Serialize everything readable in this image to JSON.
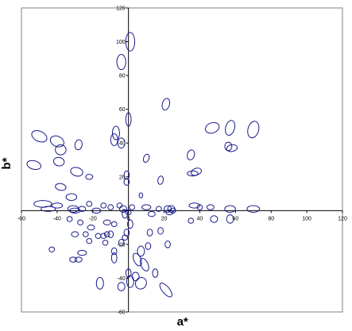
{
  "chart_data": {
    "type": "scatter",
    "title": "",
    "xlabel": "a*",
    "ylabel": "b*",
    "xlim": [
      -60,
      120
    ],
    "ylim": [
      -60,
      120
    ],
    "x_ticks": [
      -60,
      -40,
      -20,
      0,
      20,
      40,
      60,
      80,
      100,
      120
    ],
    "y_ticks": [
      -60,
      -40,
      -20,
      0,
      20,
      40,
      60,
      80,
      100,
      120
    ],
    "x_tick_labels": [
      "-60",
      "-40",
      "-20",
      "0",
      "20",
      "40",
      "60",
      "80",
      "100",
      "120"
    ],
    "y_tick_labels": [
      "-60",
      "-40",
      "-20",
      "0",
      "20",
      "40",
      "60",
      "80",
      "100",
      "120"
    ],
    "grid": false,
    "legend": "none",
    "marker": "ellipse",
    "colors": {
      "marker": "#1a1a8c",
      "axis": "#000000",
      "frame": "#808080"
    },
    "points": [
      {
        "x": 1,
        "y": 100,
        "ra": 2.5,
        "rb": 5.5,
        "rot": 0
      },
      {
        "x": -4,
        "y": 88,
        "ra": 2.5,
        "rb": 4.5,
        "rot": 0
      },
      {
        "x": 21,
        "y": 63,
        "ra": 2,
        "rb": 3.5,
        "rot": 15
      },
      {
        "x": 0,
        "y": 54,
        "ra": 1.5,
        "rb": 4,
        "rot": 0
      },
      {
        "x": -7,
        "y": 46,
        "ra": 2,
        "rb": 4,
        "rot": 0
      },
      {
        "x": -8,
        "y": 42,
        "ra": 2,
        "rb": 3.5,
        "rot": 0
      },
      {
        "x": -4,
        "y": 40,
        "ra": 2,
        "rb": 3,
        "rot": 0
      },
      {
        "x": 10,
        "y": 31,
        "ra": 1.5,
        "rb": 2.5,
        "rot": 20
      },
      {
        "x": 47,
        "y": 49,
        "ra": 4,
        "rb": 3,
        "rot": -20
      },
      {
        "x": 57,
        "y": 49,
        "ra": 2.5,
        "rb": 4.5,
        "rot": 15
      },
      {
        "x": 70,
        "y": 48,
        "ra": 3,
        "rb": 5,
        "rot": 15
      },
      {
        "x": 56,
        "y": 38,
        "ra": 2,
        "rb": 2.5,
        "rot": 0
      },
      {
        "x": 58,
        "y": 37,
        "ra": 3,
        "rb": 2,
        "rot": -10
      },
      {
        "x": 35,
        "y": 33,
        "ra": 2,
        "rb": 3,
        "rot": 15
      },
      {
        "x": 38,
        "y": 23,
        "ra": 3,
        "rb": 2,
        "rot": -20
      },
      {
        "x": 36,
        "y": 22,
        "ra": 3,
        "rb": 1.5,
        "rot": 0
      },
      {
        "x": 18,
        "y": 18,
        "ra": 1.5,
        "rb": 2.5,
        "rot": 10
      },
      {
        "x": -1,
        "y": 21,
        "ra": 1.5,
        "rb": 2.5,
        "rot": 0
      },
      {
        "x": -1,
        "y": 17,
        "ra": 1.5,
        "rb": 2,
        "rot": 0
      },
      {
        "x": 7,
        "y": 9,
        "ra": 1,
        "rb": 1.5,
        "rot": 0
      },
      {
        "x": -50,
        "y": 44,
        "ra": 4.5,
        "rb": 3,
        "rot": 25
      },
      {
        "x": -40,
        "y": 41,
        "ra": 4,
        "rb": 3,
        "rot": 25
      },
      {
        "x": -38,
        "y": 36,
        "ra": 3,
        "rb": 3,
        "rot": 0
      },
      {
        "x": -28,
        "y": 39,
        "ra": 2,
        "rb": 3,
        "rot": 10
      },
      {
        "x": -53,
        "y": 27,
        "ra": 4,
        "rb": 2.5,
        "rot": 15
      },
      {
        "x": -39,
        "y": 29,
        "ra": 3,
        "rb": 2.5,
        "rot": 10
      },
      {
        "x": -29,
        "y": 23,
        "ra": 3.5,
        "rb": 2.5,
        "rot": 15
      },
      {
        "x": -22,
        "y": 20,
        "ra": 2,
        "rb": 1.5,
        "rot": 0
      },
      {
        "x": -38,
        "y": 14,
        "ra": 3,
        "rb": 2,
        "rot": 10
      },
      {
        "x": -32,
        "y": 8,
        "ra": 3,
        "rb": 2,
        "rot": 0
      },
      {
        "x": -48,
        "y": 4,
        "ra": 5,
        "rb": 2,
        "rot": 0
      },
      {
        "x": -45,
        "y": 1,
        "ra": 4,
        "rb": 1.5,
        "rot": 0
      },
      {
        "x": -40,
        "y": 3,
        "ra": 3,
        "rb": 1.5,
        "rot": 0
      },
      {
        "x": -31,
        "y": 1,
        "ra": 3,
        "rb": 2,
        "rot": 0
      },
      {
        "x": -30,
        "y": 0,
        "ra": 3,
        "rb": 1.5,
        "rot": 0
      },
      {
        "x": -26,
        "y": 1,
        "ra": 2,
        "rb": 1.5,
        "rot": 0
      },
      {
        "x": -22,
        "y": 4,
        "ra": 1.5,
        "rb": 1.5,
        "rot": 0
      },
      {
        "x": -18,
        "y": 0,
        "ra": 2.5,
        "rb": 1.5,
        "rot": 0
      },
      {
        "x": -14,
        "y": 3,
        "ra": 1.5,
        "rb": 1.5,
        "rot": 0
      },
      {
        "x": -10,
        "y": 2,
        "ra": 1.5,
        "rb": 1.5,
        "rot": 0
      },
      {
        "x": -5,
        "y": 3,
        "ra": 1.5,
        "rb": 1.5,
        "rot": 0
      },
      {
        "x": -3,
        "y": 1,
        "ra": 2,
        "rb": 2,
        "rot": 0
      },
      {
        "x": -2,
        "y": -2,
        "ra": 1.5,
        "rb": 2.5,
        "rot": 0
      },
      {
        "x": 0,
        "y": -1,
        "ra": 1.5,
        "rb": 1.5,
        "rot": 0
      },
      {
        "x": 2,
        "y": 2,
        "ra": 1.5,
        "rb": 1.5,
        "rot": 0
      },
      {
        "x": 1,
        "y": -8,
        "ra": 1.5,
        "rb": 2.5,
        "rot": 0
      },
      {
        "x": -1,
        "y": -13,
        "ra": 1.5,
        "rb": 2,
        "rot": 0
      },
      {
        "x": -2,
        "y": -16,
        "ra": 1.5,
        "rb": 1.5,
        "rot": 0
      },
      {
        "x": 10,
        "y": 2,
        "ra": 2.5,
        "rb": 1.5,
        "rot": 0
      },
      {
        "x": 13,
        "y": -2,
        "ra": 2,
        "rb": 1.5,
        "rot": 0
      },
      {
        "x": 17,
        "y": 1,
        "ra": 1.5,
        "rb": 1.5,
        "rot": 0
      },
      {
        "x": 22,
        "y": 1,
        "ra": 2,
        "rb": 2,
        "rot": 0
      },
      {
        "x": 24,
        "y": 1,
        "ra": 2,
        "rb": 2,
        "rot": 0
      },
      {
        "x": 25,
        "y": 0,
        "ra": 1.5,
        "rb": 1.5,
        "rot": 0
      },
      {
        "x": 23,
        "y": -1,
        "ra": 2,
        "rb": 1.5,
        "rot": 0
      },
      {
        "x": 37,
        "y": 3,
        "ra": 3,
        "rb": 1.5,
        "rot": 0
      },
      {
        "x": 40,
        "y": 2,
        "ra": 1.5,
        "rb": 1.5,
        "rot": 0
      },
      {
        "x": 46,
        "y": 2,
        "ra": 2,
        "rb": 1.5,
        "rot": 0
      },
      {
        "x": 57,
        "y": 1,
        "ra": 3,
        "rb": 2,
        "rot": 0
      },
      {
        "x": 70,
        "y": 1,
        "ra": 3.5,
        "rb": 2,
        "rot": 0
      },
      {
        "x": 57,
        "y": -5,
        "ra": 2,
        "rb": 2.5,
        "rot": 0
      },
      {
        "x": 48,
        "y": -5,
        "ra": 2,
        "rb": 2,
        "rot": 0
      },
      {
        "x": 35,
        "y": -6,
        "ra": 1.5,
        "rb": 1.5,
        "rot": 0
      },
      {
        "x": 18,
        "y": -12,
        "ra": 1.5,
        "rb": 2,
        "rot": 0
      },
      {
        "x": 22,
        "y": -20,
        "ra": 1.5,
        "rb": 2,
        "rot": 0
      },
      {
        "x": 12,
        "y": -13,
        "ra": 1.5,
        "rb": 2,
        "rot": 0
      },
      {
        "x": 11,
        "y": -21,
        "ra": 1.5,
        "rb": 2,
        "rot": 0
      },
      {
        "x": 7,
        "y": -24,
        "ra": 2,
        "rb": 3,
        "rot": 0
      },
      {
        "x": 5,
        "y": -29,
        "ra": 2,
        "rb": 4,
        "rot": -25
      },
      {
        "x": 9,
        "y": -32,
        "ra": 2,
        "rb": 4,
        "rot": -25
      },
      {
        "x": 15,
        "y": -37,
        "ra": 1.5,
        "rb": 2.5,
        "rot": 0
      },
      {
        "x": 4,
        "y": -39,
        "ra": 2,
        "rb": 2.5,
        "rot": 0
      },
      {
        "x": 0,
        "y": -37,
        "ra": 1.5,
        "rb": 2.5,
        "rot": 0
      },
      {
        "x": 1,
        "y": -42,
        "ra": 2,
        "rb": 3.5,
        "rot": 0
      },
      {
        "x": 7,
        "y": -43,
        "ra": 3,
        "rb": 3.5,
        "rot": 30
      },
      {
        "x": 21,
        "y": -47,
        "ra": 2,
        "rb": 5,
        "rot": -40
      },
      {
        "x": -16,
        "y": -43,
        "ra": 2,
        "rb": 3.5,
        "rot": 0
      },
      {
        "x": -4,
        "y": -45,
        "ra": 2,
        "rb": 2.5,
        "rot": 0
      },
      {
        "x": -8,
        "y": -28,
        "ra": 1.5,
        "rb": 3,
        "rot": 0
      },
      {
        "x": -8,
        "y": -24,
        "ra": 1.5,
        "rb": 2,
        "rot": 0
      },
      {
        "x": -4,
        "y": -19,
        "ra": 1.5,
        "rb": 2,
        "rot": 0
      },
      {
        "x": -10,
        "y": -14,
        "ra": 1.5,
        "rb": 2,
        "rot": 0
      },
      {
        "x": -12,
        "y": -14,
        "ra": 1.5,
        "rb": 1.5,
        "rot": 0
      },
      {
        "x": -14,
        "y": -15,
        "ra": 1.5,
        "rb": 1.5,
        "rot": 0
      },
      {
        "x": -13,
        "y": -19,
        "ra": 1.5,
        "rb": 1.5,
        "rot": 0
      },
      {
        "x": -17,
        "y": -15,
        "ra": 1.5,
        "rb": 1.5,
        "rot": 0
      },
      {
        "x": -21,
        "y": -10,
        "ra": 2,
        "rb": 1.5,
        "rot": 0
      },
      {
        "x": -22,
        "y": -18,
        "ra": 1.5,
        "rb": 1.5,
        "rot": 0
      },
      {
        "x": -24,
        "y": -14,
        "ra": 1.5,
        "rb": 1.5,
        "rot": 0
      },
      {
        "x": -30,
        "y": -14,
        "ra": 2,
        "rb": 1.5,
        "rot": 0
      },
      {
        "x": -26,
        "y": -25,
        "ra": 2.5,
        "rb": 1.5,
        "rot": 0
      },
      {
        "x": -28,
        "y": -29,
        "ra": 2,
        "rb": 1.5,
        "rot": 0
      },
      {
        "x": -31,
        "y": -29,
        "ra": 2,
        "rb": 1.5,
        "rot": 0
      },
      {
        "x": -43,
        "y": -23,
        "ra": 1.5,
        "rb": 1.5,
        "rot": 0
      },
      {
        "x": -33,
        "y": -5,
        "ra": 1.5,
        "rb": 1.5,
        "rot": 0
      },
      {
        "x": -27,
        "y": -7,
        "ra": 1.5,
        "rb": 1.5,
        "rot": 0
      },
      {
        "x": -12,
        "y": -7,
        "ra": 2,
        "rb": 1.5,
        "rot": 0
      },
      {
        "x": -8,
        "y": -8,
        "ra": 1.5,
        "rb": 1.5,
        "rot": 0
      }
    ]
  }
}
